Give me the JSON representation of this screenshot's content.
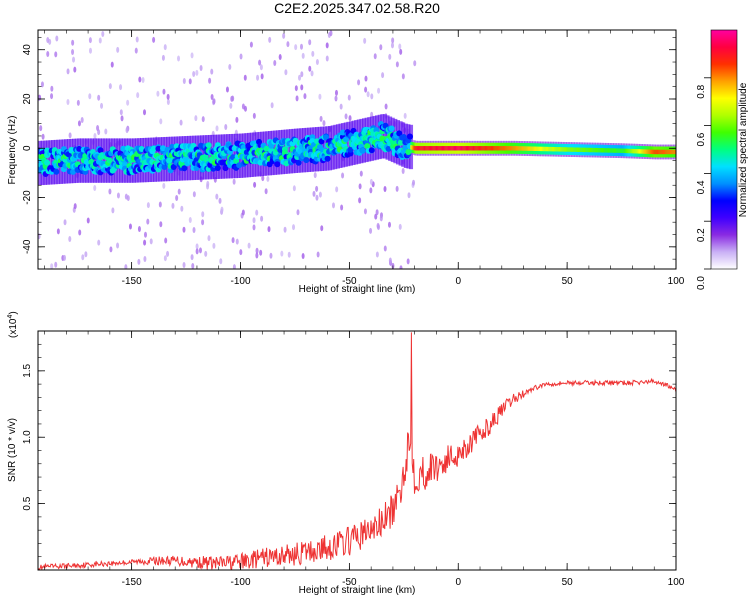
{
  "title": "C2E2.2025.347.02.58.R20",
  "chart_data": [
    {
      "type": "heatmap",
      "xlabel": "Height of straight line (km)",
      "ylabel": "Frequency (Hz)",
      "xlim": [
        -193,
        100
      ],
      "ylim": [
        -49,
        48
      ],
      "xticks": [
        -150,
        -100,
        -50,
        0,
        50,
        100
      ],
      "yticks": [
        -40,
        -20,
        0,
        20,
        40
      ],
      "colorbar": {
        "label": "Normalized spectral amplitude",
        "range": [
          0,
          1
        ],
        "ticks": [
          "0.0",
          "0.2",
          "0.4",
          "0.6",
          "0.8"
        ],
        "colors": [
          "#ffffff",
          "#c9b0f5",
          "#8a2be2",
          "#3f00ff",
          "#0000ff",
          "#0090ff",
          "#00e0ff",
          "#00ff80",
          "#40ff00",
          "#b0ff00",
          "#ffff00",
          "#ffa000",
          "#ff3000",
          "#ff0040",
          "#ff00a0"
        ]
      },
      "ridge": [
        {
          "x": -193,
          "y": -6,
          "amp": 0.35
        },
        {
          "x": -175,
          "y": -5,
          "amp": 0.33
        },
        {
          "x": -150,
          "y": -5,
          "amp": 0.34
        },
        {
          "x": -125,
          "y": -4,
          "amp": 0.35
        },
        {
          "x": -100,
          "y": -3,
          "amp": 0.36
        },
        {
          "x": -75,
          "y": -1,
          "amp": 0.37
        },
        {
          "x": -60,
          "y": 0,
          "amp": 0.38
        },
        {
          "x": -45,
          "y": 3,
          "amp": 0.4
        },
        {
          "x": -35,
          "y": 5,
          "amp": 0.42
        },
        {
          "x": -25,
          "y": 1,
          "amp": 0.45
        },
        {
          "x": -20,
          "y": 0,
          "amp": 0.9
        },
        {
          "x": 0,
          "y": 0,
          "amp": 0.95
        },
        {
          "x": 25,
          "y": 0,
          "amp": 0.8
        },
        {
          "x": 50,
          "y": -0.5,
          "amp": 0.62
        },
        {
          "x": 75,
          "y": -1,
          "amp": 0.55
        },
        {
          "x": 90,
          "y": -1.5,
          "amp": 0.85
        },
        {
          "x": 100,
          "y": -1.5,
          "amp": 0.8
        }
      ]
    },
    {
      "type": "line",
      "xlabel": "Height of straight line (km)",
      "ylabel": "SNR (10 * v/v)",
      "yscale_label": "(x10",
      "yscale_exp": "4",
      "yscale_close": ")",
      "xlim": [
        -193,
        100
      ],
      "ylim": [
        0,
        1.8
      ],
      "xticks": [
        -150,
        -100,
        -50,
        0,
        50,
        100
      ],
      "yticks": [
        0.5,
        1.0,
        1.5
      ],
      "ytick_labels": [
        "0.5",
        "1.0",
        "1.5"
      ],
      "color": "#ee3333",
      "series": [
        {
          "x": [
            -193,
            -180,
            -160,
            -150,
            -140,
            -130,
            -120,
            -110,
            -100,
            -90,
            -80,
            -70,
            -60,
            -50,
            -45,
            -40,
            -35,
            -30,
            -27,
            -25,
            -23,
            -21,
            -20,
            -18,
            -15,
            -10,
            -5,
            0,
            5,
            10,
            15,
            20,
            25,
            30,
            35,
            40,
            50,
            60,
            70,
            80,
            90,
            95,
            100
          ],
          "y": [
            0.02,
            0.03,
            0.05,
            0.06,
            0.07,
            0.07,
            0.06,
            0.05,
            0.06,
            0.09,
            0.11,
            0.13,
            0.17,
            0.22,
            0.26,
            0.3,
            0.36,
            0.45,
            0.55,
            0.75,
            0.95,
            0.9,
            0.7,
            0.72,
            0.74,
            0.78,
            0.83,
            0.88,
            0.95,
            1.02,
            1.1,
            1.2,
            1.28,
            1.33,
            1.37,
            1.4,
            1.41,
            1.41,
            1.41,
            1.41,
            1.42,
            1.4,
            1.35
          ],
          "peak": {
            "x": -21.5,
            "y": 1.8
          }
        }
      ]
    }
  ]
}
